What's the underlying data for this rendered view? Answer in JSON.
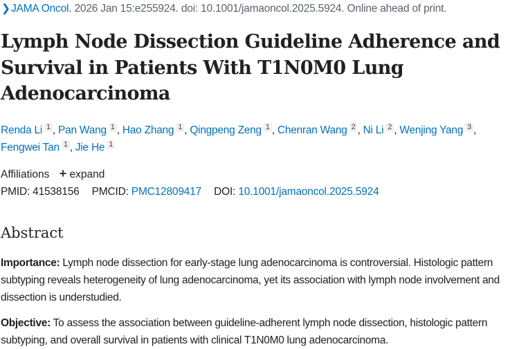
{
  "citation": {
    "chevron_icon": "chevron-right-icon",
    "journal": "JAMA Oncol.",
    "details": " 2026 Jan 15:e255924. doi: 10.1001/jamaoncol.2025.5924. Online ahead of print."
  },
  "title": "Lymph Node Dissection Guideline Adherence and Survival in Patients With T1N0M0 Lung Adenocarcinoma",
  "authors": [
    {
      "name": "Renda Li",
      "aff": "1"
    },
    {
      "name": "Pan Wang",
      "aff": "1"
    },
    {
      "name": "Hao Zhang",
      "aff": "1"
    },
    {
      "name": "Qingpeng Zeng",
      "aff": "1"
    },
    {
      "name": "Chenran Wang",
      "aff": "2"
    },
    {
      "name": "Ni Li",
      "aff": "2"
    },
    {
      "name": "Wenjing Yang",
      "aff": "3"
    },
    {
      "name": "Fengwei Tan",
      "aff": "1"
    },
    {
      "name": "Jie He",
      "aff": "1"
    }
  ],
  "affiliations": {
    "label": "Affiliations",
    "expand": "expand",
    "plus_icon": "plus-icon"
  },
  "ids": {
    "pmid_label": "PMID:",
    "pmid": "41538156",
    "pmcid_label": "PMCID:",
    "pmcid": "PMC12809417",
    "doi_label": "DOI:",
    "doi": "10.1001/jamaoncol.2025.5924"
  },
  "abstract": {
    "heading": "Abstract",
    "sections": [
      {
        "label": "Importance:",
        "text": " Lymph node dissection for early-stage lung adenocarcinoma is controversial. Histologic pattern subtyping reveals heterogeneity of lung adenocarcinoma, yet its association with lymph node involvement and dissection is understudied."
      },
      {
        "label": "Objective:",
        "text": " To assess the association between guideline-adherent lymph node dissection, histologic pattern subtyping, and overall survival in patients with clinical T1N0M0 lung adenocarcinoma."
      }
    ]
  }
}
